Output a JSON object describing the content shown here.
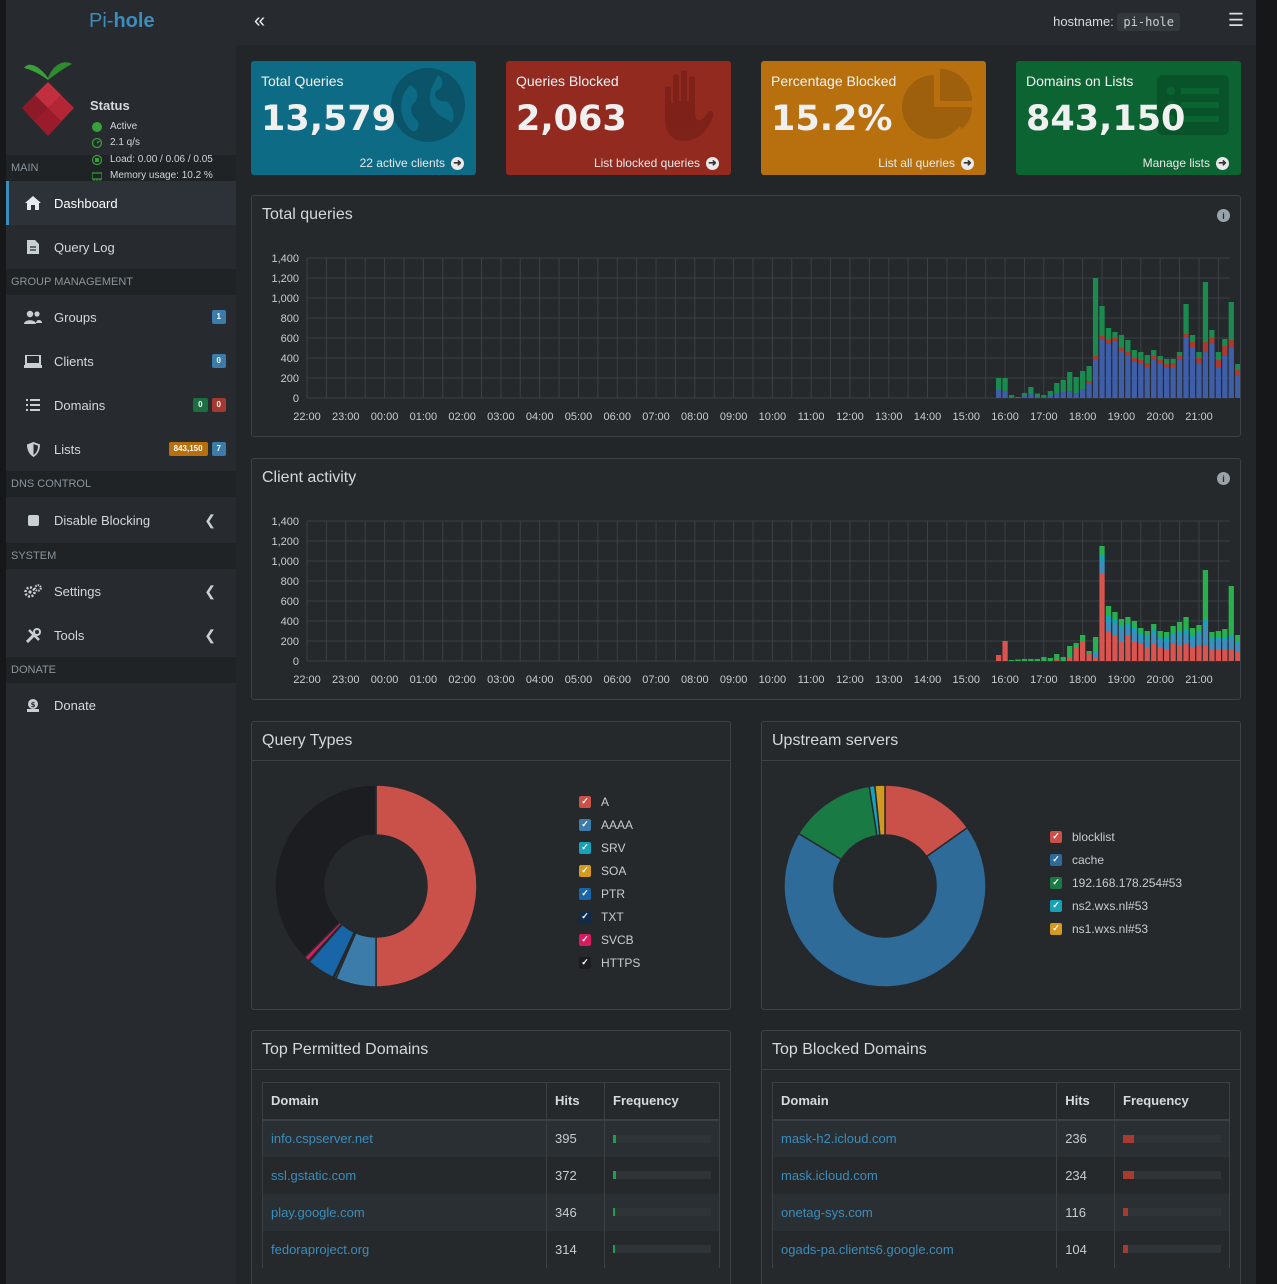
{
  "brand": {
    "pre": "Pi-",
    "bold": "hole"
  },
  "status": {
    "title": "Status",
    "active": "Active",
    "rate": "2.1 q/s",
    "load": "Load: 0.00 / 0.06 / 0.05",
    "memory": "Memory usage: 10.2 %"
  },
  "header": {
    "hostname_label": "hostname:",
    "hostname": "pi-hole"
  },
  "sidebar": {
    "sec_main": "MAIN",
    "dashboard": "Dashboard",
    "query_log": "Query Log",
    "sec_group": "GROUP MANAGEMENT",
    "groups": "Groups",
    "groups_badge": "1",
    "clients": "Clients",
    "clients_badge": "0",
    "domains": "Domains",
    "domains_badge_green": "0",
    "domains_badge_red": "0",
    "lists": "Lists",
    "lists_badge_orange": "843,150",
    "lists_badge_blue": "7",
    "sec_dns": "DNS CONTROL",
    "disable_blocking": "Disable Blocking",
    "sec_system": "SYSTEM",
    "settings": "Settings",
    "tools": "Tools",
    "sec_donate": "DONATE",
    "donate": "Donate"
  },
  "stats": {
    "total": {
      "label": "Total Queries",
      "value": "13,579",
      "footer": "22 active clients",
      "color": "#0d6b85"
    },
    "blocked": {
      "label": "Queries Blocked",
      "value": "2,063",
      "footer": "List blocked queries",
      "color": "#922a20"
    },
    "percent": {
      "label": "Percentage Blocked",
      "value": "15.2%",
      "footer": "List all queries",
      "color": "#b8700f"
    },
    "domains": {
      "label": "Domains on Lists",
      "value": "843,150",
      "footer": "Manage lists",
      "color": "#0b6432"
    }
  },
  "panels": {
    "total_queries": "Total queries",
    "client_activity": "Client activity",
    "query_types": "Query Types",
    "upstream": "Upstream servers",
    "top_permitted": "Top Permitted Domains",
    "top_blocked": "Top Blocked Domains"
  },
  "chart_data": [
    {
      "type": "bar",
      "title": "Total queries",
      "ylim": [
        0,
        1400
      ],
      "yticks": [
        "1,400",
        "1,200",
        "1,000",
        "800",
        "600",
        "400",
        "200",
        "0"
      ],
      "xticks": [
        "22:00",
        "23:00",
        "00:00",
        "01:00",
        "02:00",
        "03:00",
        "04:00",
        "05:00",
        "06:00",
        "07:00",
        "08:00",
        "09:00",
        "10:00",
        "11:00",
        "12:00",
        "13:00",
        "14:00",
        "15:00",
        "16:00",
        "17:00",
        "18:00",
        "19:00",
        "20:00",
        "21:00"
      ],
      "series": [
        {
          "name": "permitted",
          "color": "#3f5ea8",
          "values_from_15:50": [
            90,
            70,
            10,
            0,
            20,
            40,
            15,
            10,
            25,
            50,
            60,
            60,
            40,
            80,
            150,
            380,
            580,
            540,
            560,
            470,
            420,
            360,
            340,
            310,
            380,
            340,
            300,
            310,
            380,
            600,
            500,
            340,
            460,
            540,
            300,
            420,
            500,
            220,
            400,
            360
          ]
        },
        {
          "name": "blocked",
          "color": "#a83a30",
          "values_from_15:50": [
            0,
            0,
            0,
            0,
            0,
            0,
            0,
            0,
            0,
            0,
            0,
            10,
            10,
            10,
            20,
            40,
            40,
            40,
            40,
            40,
            40,
            40,
            40,
            40,
            40,
            40,
            40,
            40,
            40,
            40,
            60,
            60,
            100,
            60,
            80,
            100,
            80,
            60,
            120,
            60
          ]
        },
        {
          "name": "cached",
          "color": "#1b8a4f",
          "values_from_15:50": [
            110,
            130,
            20,
            10,
            30,
            70,
            30,
            20,
            45,
            100,
            120,
            190,
            160,
            180,
            150,
            780,
            300,
            120,
            60,
            120,
            120,
            80,
            80,
            80,
            60,
            40,
            50,
            40,
            40,
            300,
            70,
            60,
            600,
            80,
            80,
            70,
            380,
            60,
            120,
            110
          ]
        }
      ]
    },
    {
      "type": "bar",
      "title": "Client activity",
      "ylim": [
        0,
        1400
      ],
      "yticks": [
        "1,400",
        "1,200",
        "1,000",
        "800",
        "600",
        "400",
        "200",
        "0"
      ],
      "xticks": [
        "22:00",
        "23:00",
        "00:00",
        "01:00",
        "02:00",
        "03:00",
        "04:00",
        "05:00",
        "06:00",
        "07:00",
        "08:00",
        "09:00",
        "10:00",
        "11:00",
        "12:00",
        "13:00",
        "14:00",
        "15:00",
        "16:00",
        "17:00",
        "18:00",
        "19:00",
        "20:00",
        "21:00"
      ],
      "series": [
        {
          "name": "client-red",
          "color": "#d9534f",
          "values_from_15:50": [
            60,
            200,
            0,
            0,
            0,
            0,
            0,
            0,
            0,
            20,
            0,
            30,
            130,
            200,
            70,
            40,
            880,
            300,
            250,
            200,
            250,
            200,
            170,
            140,
            180,
            140,
            120,
            170,
            160,
            180,
            140,
            160,
            150,
            110,
            120,
            120,
            110,
            90,
            120,
            130
          ]
        },
        {
          "name": "client-blue",
          "color": "#3c8dbc",
          "values_from_15:50": [
            0,
            0,
            0,
            0,
            0,
            0,
            0,
            0,
            0,
            0,
            0,
            0,
            0,
            0,
            0,
            30,
            120,
            100,
            120,
            110,
            90,
            90,
            70,
            80,
            90,
            70,
            80,
            80,
            100,
            100,
            80,
            110,
            200,
            90,
            90,
            90,
            100,
            80,
            80,
            90
          ]
        },
        {
          "name": "client-teal",
          "color": "#17a2b8",
          "values_from_15:50": [
            0,
            0,
            0,
            0,
            0,
            0,
            0,
            0,
            0,
            0,
            0,
            0,
            0,
            0,
            0,
            20,
            60,
            50,
            40,
            40,
            40,
            40,
            30,
            30,
            40,
            30,
            30,
            30,
            30,
            40,
            30,
            30,
            60,
            30,
            30,
            30,
            40,
            30,
            40,
            30
          ]
        },
        {
          "name": "client-green",
          "color": "#28b04f",
          "values_from_15:50": [
            0,
            0,
            10,
            15,
            20,
            20,
            20,
            40,
            30,
            50,
            40,
            120,
            50,
            60,
            30,
            150,
            90,
            100,
            80,
            70,
            60,
            70,
            60,
            50,
            60,
            60,
            60,
            70,
            100,
            120,
            80,
            60,
            500,
            60,
            60,
            80,
            500,
            60,
            200,
            180
          ]
        }
      ]
    },
    {
      "type": "pie",
      "title": "Query Types",
      "labels": [
        "A",
        "AAAA",
        "SRV",
        "SOA",
        "PTR",
        "TXT",
        "SVCB",
        "HTTPS"
      ],
      "values": [
        50.0,
        6.5,
        0.3,
        0.2,
        4.5,
        0.2,
        0.8,
        37.5
      ],
      "colors": [
        "#c9514a",
        "#3c7cab",
        "#17a2b8",
        "#d49a1f",
        "#1866a8",
        "#0f2c4a",
        "#d81b60",
        "#1b1d20"
      ]
    },
    {
      "type": "pie",
      "title": "Upstream servers",
      "labels": [
        "blocklist",
        "cache",
        "192.168.178.254#53",
        "ns2.wxs.nl#53",
        "ns1.wxs.nl#53"
      ],
      "values": [
        15.2,
        68.5,
        13.8,
        0.9,
        1.6
      ],
      "colors": [
        "#c9514a",
        "#2f6b99",
        "#1a7a43",
        "#17a2b8",
        "#d49a1f"
      ]
    }
  ],
  "tables": {
    "col_domain": "Domain",
    "col_hits": "Hits",
    "col_freq": "Frequency",
    "permitted": [
      {
        "domain": "info.cspserver.net",
        "hits": "395",
        "freq": 2.9
      },
      {
        "domain": "ssl.gstatic.com",
        "hits": "372",
        "freq": 2.7
      },
      {
        "domain": "play.google.com",
        "hits": "346",
        "freq": 2.5
      },
      {
        "domain": "fedoraproject.org",
        "hits": "314",
        "freq": 2.3
      }
    ],
    "blocked": [
      {
        "domain": "mask-h2.icloud.com",
        "hits": "236",
        "freq": 11.4
      },
      {
        "domain": "mask.icloud.com",
        "hits": "234",
        "freq": 11.3
      },
      {
        "domain": "onetag-sys.com",
        "hits": "116",
        "freq": 5.6
      },
      {
        "domain": "ogads-pa.clients6.google.com",
        "hits": "104",
        "freq": 5.0
      }
    ]
  }
}
